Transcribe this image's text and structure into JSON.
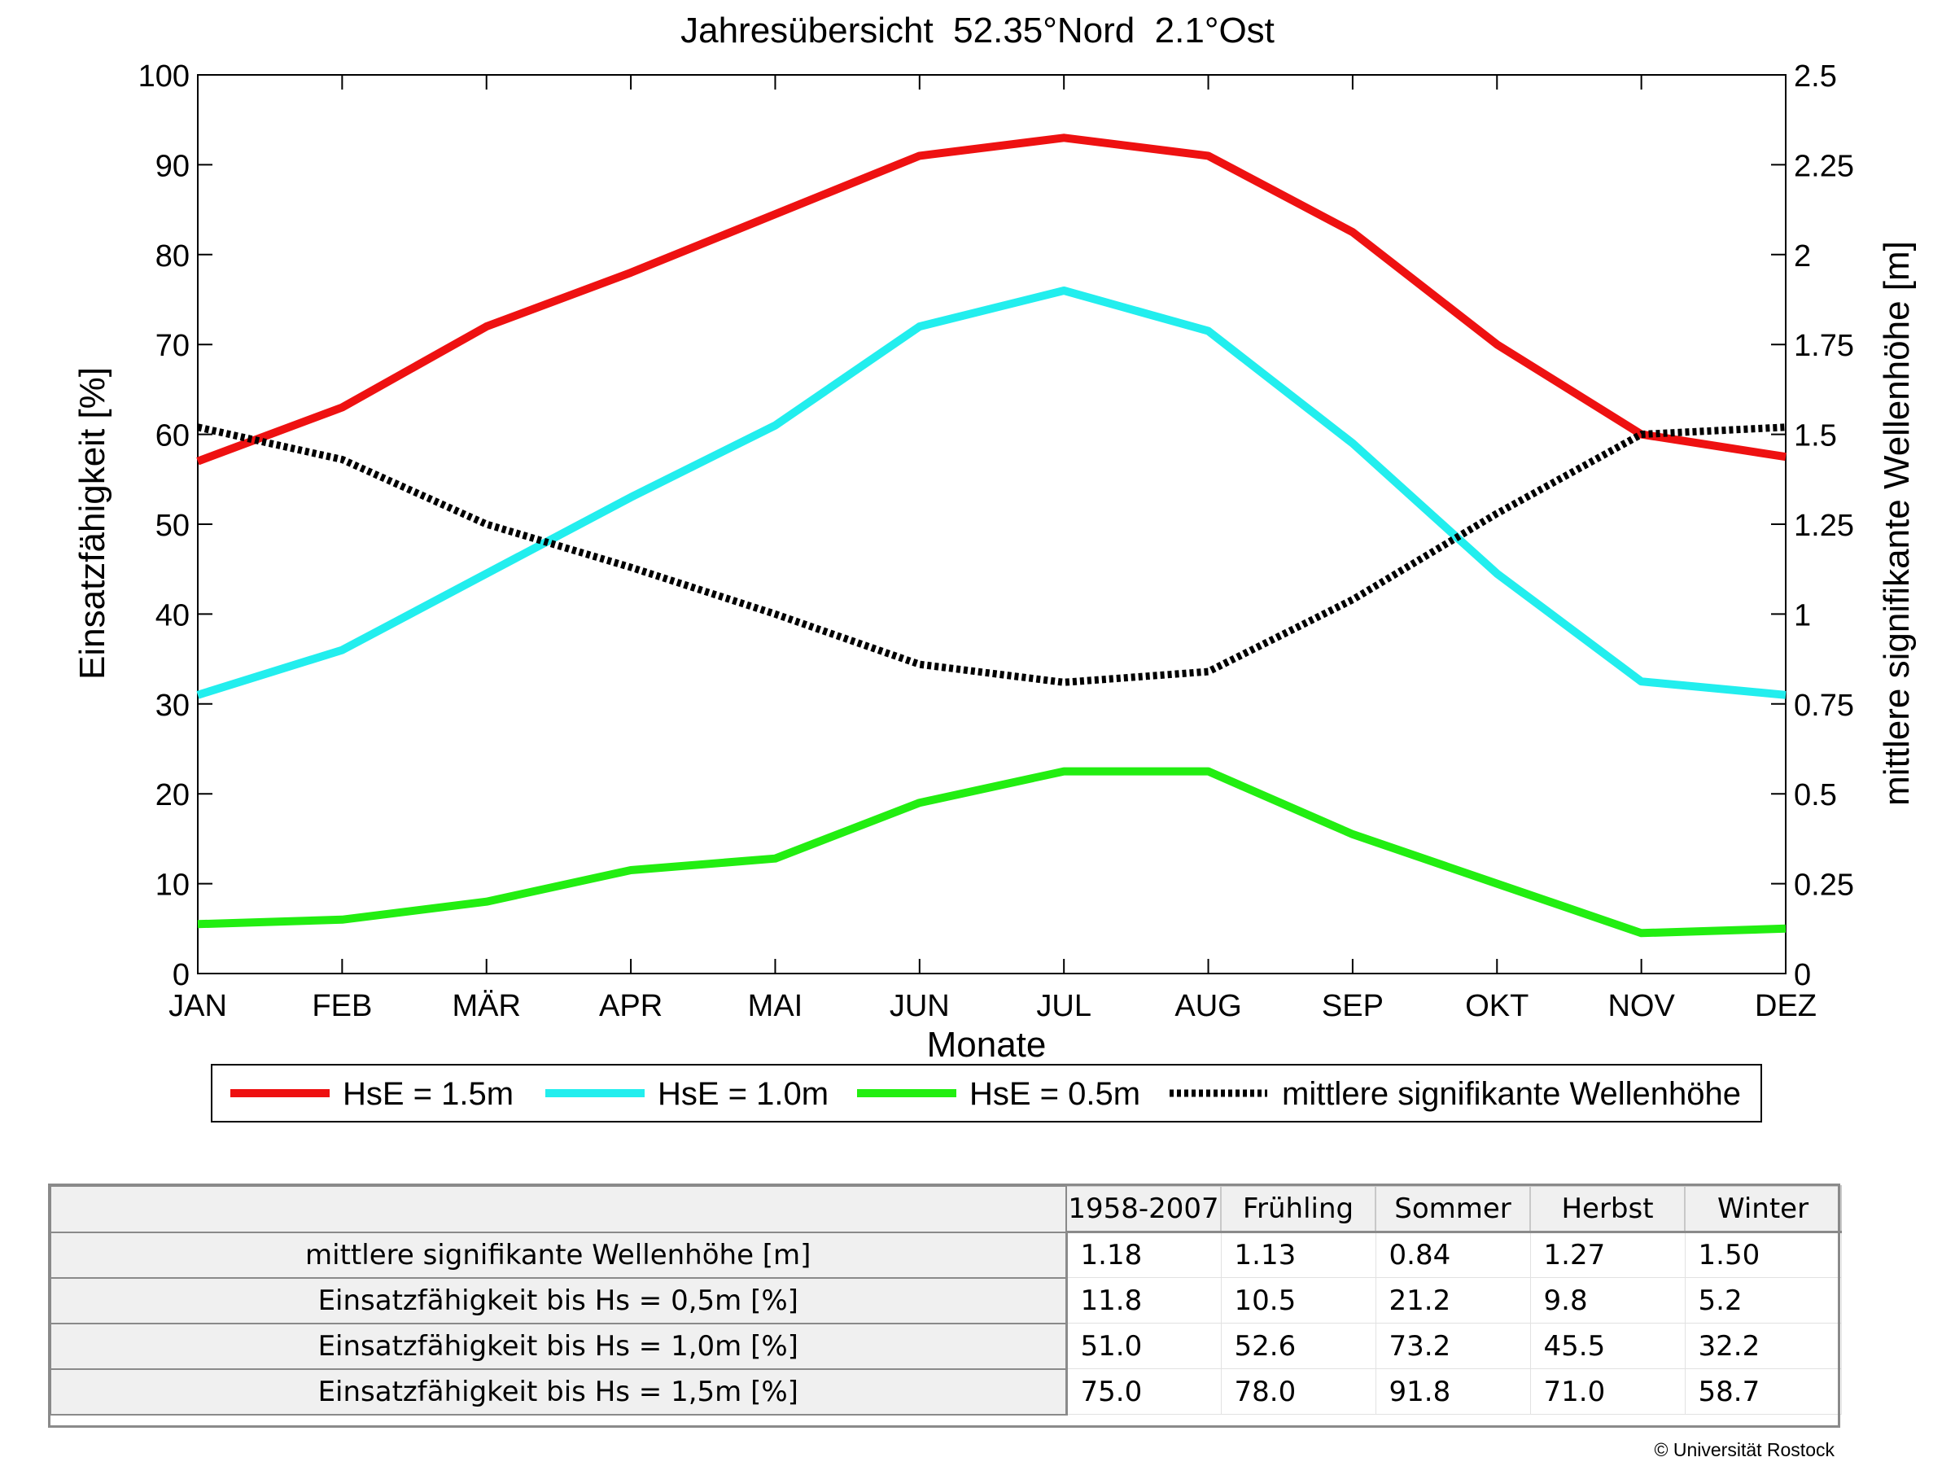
{
  "chart_data": {
    "type": "line",
    "title": "Jahresübersicht  52.35°Nord  2.1°Ost",
    "xlabel": "Monate",
    "ylabel": "Einsatzfähigkeit [%]",
    "y2label": "mittlere signifikante Wellenhöhe [m]",
    "categories": [
      "JAN",
      "FEB",
      "MÄR",
      "APR",
      "MAI",
      "JUN",
      "JUL",
      "AUG",
      "SEP",
      "OKT",
      "NOV",
      "DEZ"
    ],
    "ylim": [
      0,
      100
    ],
    "y2lim": [
      0,
      2.5
    ],
    "yticks": [
      "0",
      "10",
      "20",
      "30",
      "40",
      "50",
      "60",
      "70",
      "80",
      "90",
      "100"
    ],
    "y2ticks": [
      "0",
      "0.25",
      "0.5",
      "0.75",
      "1",
      "1.25",
      "1.5",
      "1.75",
      "2",
      "2.25",
      "2.5"
    ],
    "grid": false,
    "legend_position": "bottom",
    "series": [
      {
        "name": "HsE = 1.5m",
        "axis": "left",
        "color": "#ee1111",
        "style": "solid",
        "values": [
          57,
          63,
          72,
          78,
          84.5,
          91,
          93,
          91,
          82.5,
          70,
          60,
          57.5
        ]
      },
      {
        "name": "HsE = 1.0m",
        "axis": "left",
        "color": "#22eeee",
        "style": "solid",
        "values": [
          31,
          36,
          44.5,
          53,
          61,
          72,
          76,
          71.5,
          59,
          44.5,
          32.5,
          31
        ]
      },
      {
        "name": "HsE = 0.5m",
        "axis": "left",
        "color": "#22ee11",
        "style": "solid",
        "values": [
          5.5,
          6,
          8,
          11.5,
          12.8,
          19,
          22.5,
          22.5,
          15.5,
          10,
          4.5,
          5
        ]
      },
      {
        "name": "mittlere signifikante Wellenhöhe",
        "axis": "right",
        "color": "#000000",
        "style": "dotted",
        "values": [
          1.52,
          1.43,
          1.25,
          1.13,
          1.0,
          0.86,
          0.81,
          0.84,
          1.04,
          1.28,
          1.5,
          1.52
        ]
      }
    ]
  },
  "table": {
    "columns": [
      "1958-2007",
      "Frühling",
      "Sommer",
      "Herbst",
      "Winter"
    ],
    "rows": [
      {
        "label": "mittlere signifikante Wellenhöhe [m]",
        "values": [
          "1.18",
          "1.13",
          "0.84",
          "1.27",
          "1.50"
        ]
      },
      {
        "label": "Einsatzfähigkeit bis Hs = 0,5m [%]",
        "values": [
          "11.8",
          "10.5",
          "21.2",
          "9.8",
          "5.2"
        ]
      },
      {
        "label": "Einsatzfähigkeit bis Hs = 1,0m [%]",
        "values": [
          "51.0",
          "52.6",
          "73.2",
          "45.5",
          "32.2"
        ]
      },
      {
        "label": "Einsatzfähigkeit bis Hs = 1,5m [%]",
        "values": [
          "75.0",
          "78.0",
          "91.8",
          "71.0",
          "58.7"
        ]
      }
    ]
  },
  "footer": {
    "copyright": "© Universität Rostock"
  }
}
